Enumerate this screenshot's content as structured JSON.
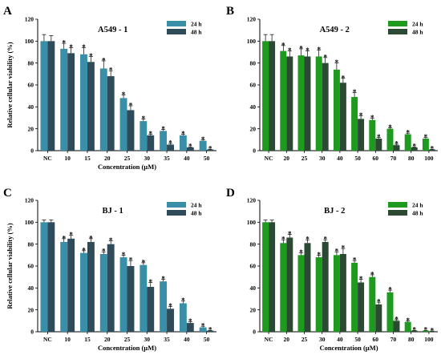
{
  "chart_data": [
    {
      "panel_letter": "A",
      "type": "bar",
      "title": "A549 - 1",
      "xlabel": "Concentration (µM)",
      "ylabel": "Relative cellular viability (%)",
      "ylim": [
        0,
        120
      ],
      "yticks": [
        0,
        20,
        40,
        60,
        80,
        100,
        120
      ],
      "categories": [
        "NC",
        "10",
        "15",
        "20",
        "25",
        "30",
        "35",
        "40",
        "50"
      ],
      "legend_position": "top-right",
      "series": [
        {
          "name": "24 h",
          "color": "#3a8fa8",
          "values": [
            100,
            93,
            88,
            75,
            48,
            27,
            18,
            14,
            9
          ],
          "errors": [
            6,
            5,
            6,
            7,
            3,
            2,
            1.5,
            1,
            1
          ],
          "significant": [
            false,
            true,
            true,
            true,
            true,
            true,
            true,
            true,
            true
          ]
        },
        {
          "name": "48 h",
          "color": "#2f4a58",
          "values": [
            100,
            89,
            81,
            68,
            37,
            14,
            5.5,
            3,
            1
          ],
          "errors": [
            5,
            5,
            5,
            5,
            4,
            1,
            1,
            0.5,
            0.3
          ],
          "significant": [
            false,
            true,
            true,
            true,
            true,
            true,
            true,
            true,
            true
          ]
        }
      ]
    },
    {
      "panel_letter": "B",
      "type": "bar",
      "title": "A549 - 2",
      "xlabel": "",
      "ylabel": "",
      "ylim": [
        0,
        120
      ],
      "yticks": [
        0,
        20,
        40,
        60,
        80,
        100,
        120
      ],
      "categories": [
        "NC",
        "20",
        "25",
        "30",
        "40",
        "50",
        "60",
        "70",
        "80",
        "100"
      ],
      "legend_position": "top-right",
      "series": [
        {
          "name": "24 h",
          "color": "#1e9a1e",
          "values": [
            100,
            91,
            87,
            86,
            74,
            49,
            28,
            20,
            15,
            11
          ],
          "errors": [
            6,
            5,
            6,
            6,
            6,
            4,
            1.5,
            1,
            1,
            1
          ],
          "significant": [
            false,
            true,
            true,
            true,
            true,
            true,
            true,
            true,
            true,
            true
          ]
        },
        {
          "name": "48 h",
          "color": "#2c4a33",
          "values": [
            100,
            86,
            86,
            80,
            62,
            29,
            11,
            5,
            3,
            1
          ],
          "errors": [
            6,
            5,
            5,
            5,
            4,
            3,
            1,
            0.8,
            0.5,
            0.3
          ],
          "significant": [
            false,
            true,
            true,
            true,
            true,
            true,
            true,
            true,
            true,
            true
          ]
        }
      ]
    },
    {
      "panel_letter": "C",
      "type": "bar",
      "title": "BJ - 1",
      "xlabel": "Concentration (µM)",
      "ylabel": "Relative cellular viability (%)",
      "ylim": [
        0,
        120
      ],
      "yticks": [
        0,
        20,
        40,
        60,
        80,
        100,
        120
      ],
      "categories": [
        "NC",
        "10",
        "15",
        "20",
        "25",
        "30",
        "35",
        "40",
        "50"
      ],
      "legend_position": "top-right",
      "series": [
        {
          "name": "24 h",
          "color": "#3a8fa8",
          "values": [
            100,
            82,
            72,
            71,
            68,
            61,
            46,
            26,
            4
          ],
          "errors": [
            2,
            3,
            2,
            2,
            2,
            2,
            2,
            2,
            1
          ],
          "significant": [
            false,
            true,
            true,
            true,
            true,
            true,
            true,
            true,
            true
          ]
        },
        {
          "name": "48 h",
          "color": "#2f4a58",
          "values": [
            100,
            85,
            82,
            80,
            60,
            41,
            21,
            8,
            1
          ],
          "errors": [
            2,
            3,
            3,
            3,
            5,
            4,
            2,
            1,
            0.3
          ],
          "significant": [
            false,
            true,
            true,
            true,
            true,
            true,
            true,
            true,
            true
          ]
        }
      ]
    },
    {
      "panel_letter": "D",
      "type": "bar",
      "title": "BJ - 2",
      "xlabel": "Concentration (µM)",
      "ylabel": "",
      "ylim": [
        0,
        120
      ],
      "yticks": [
        0,
        20,
        40,
        60,
        80,
        100,
        120
      ],
      "categories": [
        "NC",
        "20",
        "25",
        "30",
        "40",
        "50",
        "60",
        "70",
        "80",
        "100"
      ],
      "legend_position": "top-right",
      "series": [
        {
          "name": "24 h",
          "color": "#1e9a1e",
          "values": [
            100,
            81,
            70,
            68,
            70,
            63,
            50,
            36,
            9,
            1
          ],
          "errors": [
            2,
            3,
            2,
            2,
            3,
            2,
            2,
            2,
            1,
            0.3
          ],
          "significant": [
            false,
            true,
            true,
            true,
            true,
            true,
            true,
            true,
            true,
            true
          ]
        },
        {
          "name": "48 h",
          "color": "#2c4a33",
          "values": [
            100,
            86,
            81,
            82,
            71,
            45,
            25,
            10,
            1,
            0.5
          ],
          "errors": [
            2,
            3,
            3,
            2,
            5,
            3,
            2,
            1,
            0.3,
            0.2
          ],
          "significant": [
            false,
            true,
            true,
            true,
            true,
            true,
            true,
            true,
            true,
            true
          ]
        }
      ]
    }
  ]
}
